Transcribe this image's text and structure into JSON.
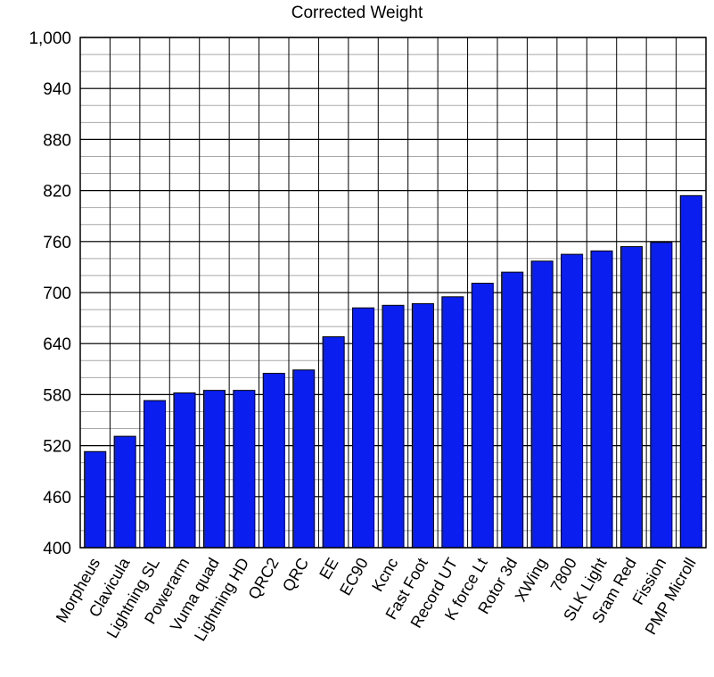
{
  "chart_data": {
    "type": "bar",
    "title": "Corrected Weight",
    "xlabel": "",
    "ylabel": "",
    "ylim": [
      400,
      1000
    ],
    "yticks": [
      400,
      460,
      520,
      580,
      640,
      700,
      760,
      820,
      880,
      940,
      1000
    ],
    "ytick_labels": [
      "400",
      "460",
      "520",
      "580",
      "640",
      "700",
      "760",
      "820",
      "880",
      "940",
      "1,000"
    ],
    "minor_step": 20,
    "grid": true,
    "bar_color": "#0a1ef0",
    "categories": [
      "Morpheus",
      "Clavicula",
      "Lightning SL",
      "Powerarm",
      "Vuma quad",
      "Lightning HD",
      "QRC2",
      "QRC",
      "EE",
      "EC90",
      "Kcnc",
      "Fast Foot",
      "Record UT",
      "K force Lt",
      "Rotor 3d",
      "XWing",
      "7800",
      "SLK Light",
      "Sram Red",
      "Fission",
      "PMP Microll"
    ],
    "values": [
      513,
      531,
      573,
      582,
      585,
      585,
      605,
      609,
      648,
      682,
      685,
      687,
      695,
      711,
      724,
      737,
      745,
      749,
      754,
      759,
      814
    ]
  }
}
